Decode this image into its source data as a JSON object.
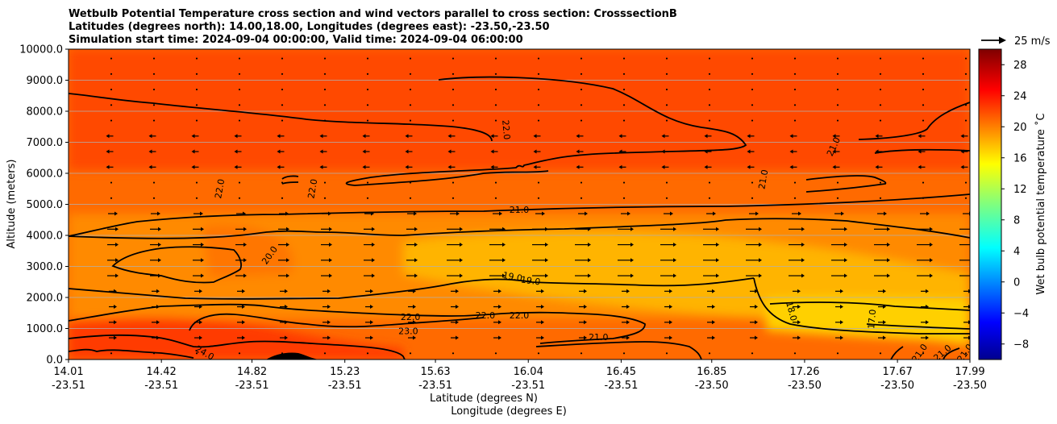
{
  "chart_data": {
    "type": "contourf_with_vectors",
    "title_lines": [
      "Wetbulb Potential Temperature cross section and wind vectors parallel to cross section: CrosssectionB",
      "Latitudes (degrees north): 14.00,18.00, Longitudes (degrees east): -23.50,-23.50",
      "Simulation start time: 2024-09-04 00:00:00, Valid time: 2024-09-04 06:00:00"
    ],
    "xlabel_lat": "Latitude (degrees N)",
    "xlabel_lon": "Longitude (degrees E)",
    "ylabel": "Altitude (meters)",
    "x_range": [
      14.01,
      17.99
    ],
    "ylim": [
      0,
      10000
    ],
    "y_ticks": [
      "0.0",
      "1000.0",
      "2000.0",
      "3000.0",
      "4000.0",
      "5000.0",
      "6000.0",
      "7000.0",
      "8000.0",
      "9000.0",
      "10000.0"
    ],
    "x_tick_lat": [
      "14.01",
      "14.42",
      "14.82",
      "15.23",
      "15.63",
      "16.04",
      "16.45",
      "16.85",
      "17.26",
      "17.67",
      "17.99"
    ],
    "x_tick_lon": [
      "-23.51",
      "-23.51",
      "-23.51",
      "-23.51",
      "-23.51",
      "-23.51",
      "-23.51",
      "-23.50",
      "-23.50",
      "-23.50",
      "-23.50"
    ],
    "x_tick_values": [
      14.01,
      14.42,
      14.82,
      15.23,
      15.63,
      16.04,
      16.45,
      16.85,
      17.26,
      17.67,
      17.99
    ],
    "colorbar_label": "Wet bulb potential temperature ˚C",
    "colorbar_range": [
      -10,
      30
    ],
    "colorbar_ticks": [
      "28",
      "24",
      "20",
      "16",
      "12",
      "8",
      "4",
      "0",
      "−4",
      "−8"
    ],
    "colorbar_tick_values": [
      28,
      24,
      20,
      16,
      12,
      8,
      4,
      0,
      -4,
      -8
    ],
    "quiver_key_label": "25 m/s",
    "contour_labels": [
      {
        "text": "22.0",
        "lat": 14.68,
        "alt": 5500,
        "rot": -80
      },
      {
        "text": "22.0",
        "lat": 15.09,
        "alt": 5500,
        "rot": -80
      },
      {
        "text": "22.0",
        "lat": 15.94,
        "alt": 7400,
        "rot": 85
      },
      {
        "text": "21.0",
        "lat": 17.08,
        "alt": 5800,
        "rot": -80
      },
      {
        "text": "21.0",
        "lat": 17.39,
        "alt": 6850,
        "rot": -65
      },
      {
        "text": "21.0",
        "lat": 16.0,
        "alt": 4800,
        "rot": 0
      },
      {
        "text": "20.0",
        "lat": 14.9,
        "alt": 3350,
        "rot": -55
      },
      {
        "text": "19.0",
        "lat": 15.97,
        "alt": 2650,
        "rot": 10
      },
      {
        "text": "19.0",
        "lat": 16.05,
        "alt": 2520,
        "rot": 8
      },
      {
        "text": "18.0",
        "lat": 17.2,
        "alt": 1550,
        "rot": 75
      },
      {
        "text": "17.0",
        "lat": 17.56,
        "alt": 1300,
        "rot": -85
      },
      {
        "text": "22.0",
        "lat": 15.52,
        "alt": 1350,
        "rot": 0
      },
      {
        "text": "22.0",
        "lat": 15.85,
        "alt": 1400,
        "rot": 0
      },
      {
        "text": "22.0",
        "lat": 16.0,
        "alt": 1400,
        "rot": 0
      },
      {
        "text": "23.0",
        "lat": 15.51,
        "alt": 900,
        "rot": 0
      },
      {
        "text": "21.0",
        "lat": 16.35,
        "alt": 700,
        "rot": 0
      },
      {
        "text": "24.0",
        "lat": 14.61,
        "alt": 200,
        "rot": 30
      },
      {
        "text": "21.0",
        "lat": 17.77,
        "alt": 200,
        "rot": -55
      },
      {
        "text": "21.0",
        "lat": 17.87,
        "alt": 200,
        "rot": -40
      },
      {
        "text": "21.0",
        "lat": 17.97,
        "alt": 200,
        "rot": -55
      }
    ],
    "colors": {
      "background_field": "#ff6a00",
      "upper_field": "#ff4a00",
      "mid_field": "#ff8a00",
      "core_field": "#ffb400",
      "surface_field": "#ff3a00",
      "terrain": "#000000",
      "contour": "#000000",
      "grid": "#b0b0b0"
    }
  }
}
